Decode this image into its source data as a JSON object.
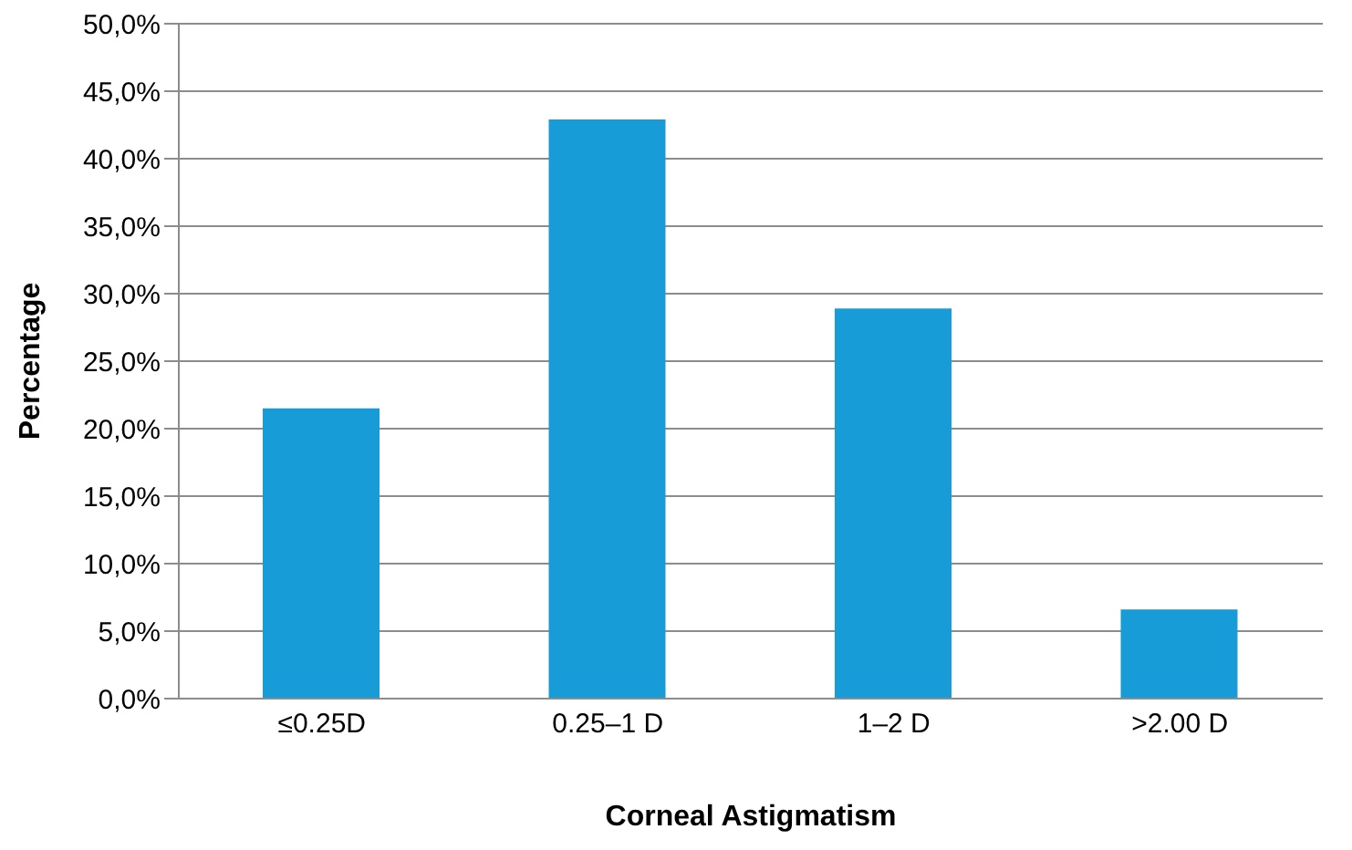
{
  "chart_data": {
    "type": "bar",
    "xlabel": "Corneal Astigmatism",
    "ylabel": "Percentage",
    "categories": [
      "≤0.25D",
      "0.25–1 D",
      "1–2 D",
      ">2.00 D"
    ],
    "values": [
      21.5,
      42.9,
      28.9,
      6.6
    ],
    "color": "#179cd8",
    "ylim": [
      0,
      50
    ],
    "yticks": [
      {
        "value": 0,
        "label": "0,0%"
      },
      {
        "value": 5,
        "label": "5,0%"
      },
      {
        "value": 10,
        "label": "10,0%"
      },
      {
        "value": 15,
        "label": "15,0%"
      },
      {
        "value": 20,
        "label": "20,0%"
      },
      {
        "value": 25,
        "label": "25,0%"
      },
      {
        "value": 30,
        "label": "30,0%"
      },
      {
        "value": 35,
        "label": "35,0%"
      },
      {
        "value": 40,
        "label": "40,0%"
      },
      {
        "value": 45,
        "label": "45,0%"
      },
      {
        "value": 50,
        "label": "50,0%"
      }
    ],
    "grid": "y"
  }
}
